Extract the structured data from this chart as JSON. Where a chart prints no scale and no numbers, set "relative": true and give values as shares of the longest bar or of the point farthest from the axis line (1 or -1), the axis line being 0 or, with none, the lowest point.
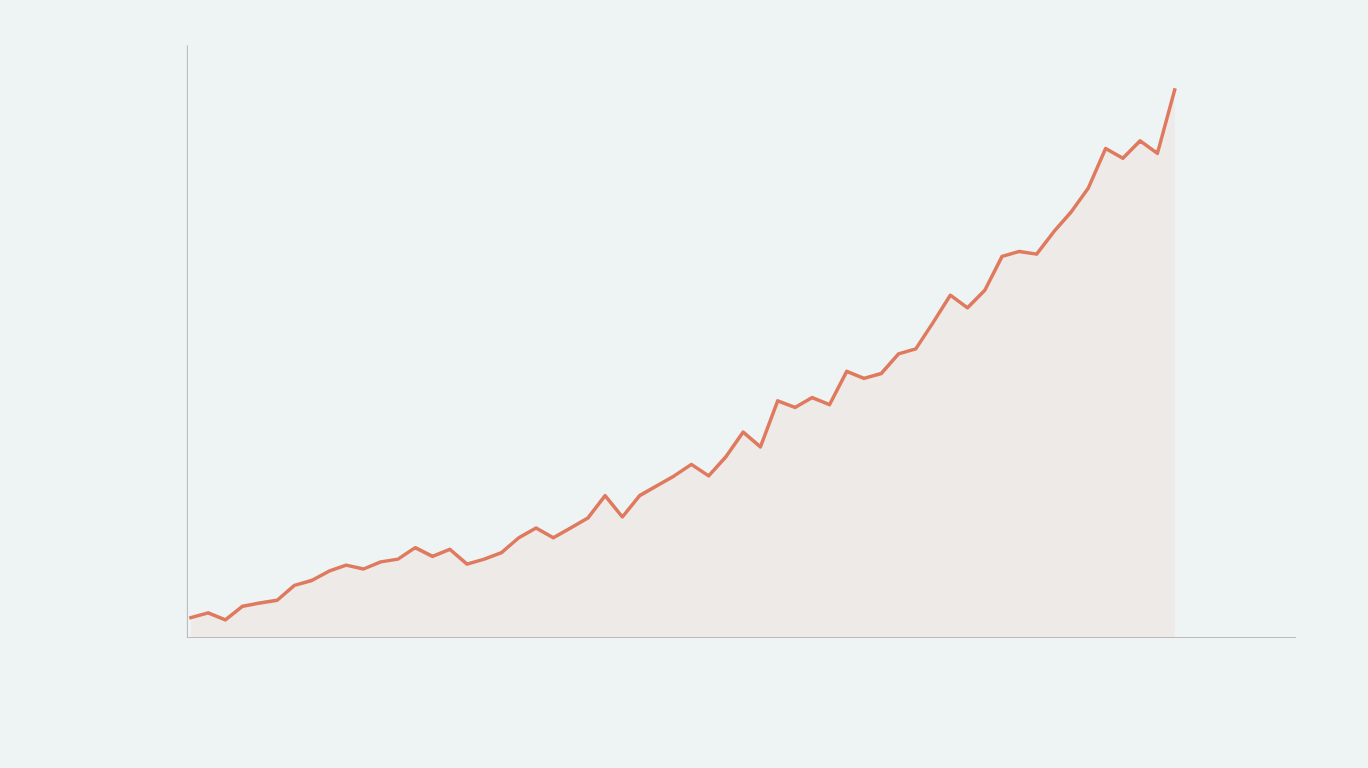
{
  "chart_data": {
    "type": "area",
    "relative": true,
    "categories": [
      null,
      null,
      null,
      null,
      null,
      null,
      null,
      null,
      null,
      null,
      null,
      null,
      null,
      null,
      null,
      null,
      null,
      null,
      null,
      null,
      null,
      null,
      null,
      null,
      null,
      null,
      null,
      null,
      null,
      null,
      null,
      null,
      null,
      null,
      null,
      null,
      null,
      null,
      null,
      null,
      null,
      null,
      null,
      null,
      null,
      null,
      null,
      null,
      null,
      null,
      null,
      null,
      null,
      null,
      null,
      null,
      null,
      null
    ],
    "series": [
      {
        "color": "#e07a5f",
        "values": [
          0.036,
          0.045,
          0.032,
          0.057,
          0.063,
          0.068,
          0.095,
          0.104,
          0.121,
          0.132,
          0.125,
          0.138,
          0.143,
          0.164,
          0.148,
          0.161,
          0.134,
          0.143,
          0.155,
          0.182,
          0.2,
          0.182,
          0.2,
          0.218,
          0.259,
          0.22,
          0.259,
          0.277,
          0.295,
          0.316,
          0.295,
          0.33,
          0.375,
          0.348,
          0.432,
          0.42,
          0.438,
          0.425,
          0.486,
          0.473,
          0.482,
          0.518,
          0.527,
          0.575,
          0.625,
          0.602,
          0.634,
          0.696,
          0.705,
          0.7,
          0.741,
          0.777,
          0.821,
          0.893,
          0.875,
          0.907,
          0.884,
          1.0
        ]
      }
    ]
  }
}
